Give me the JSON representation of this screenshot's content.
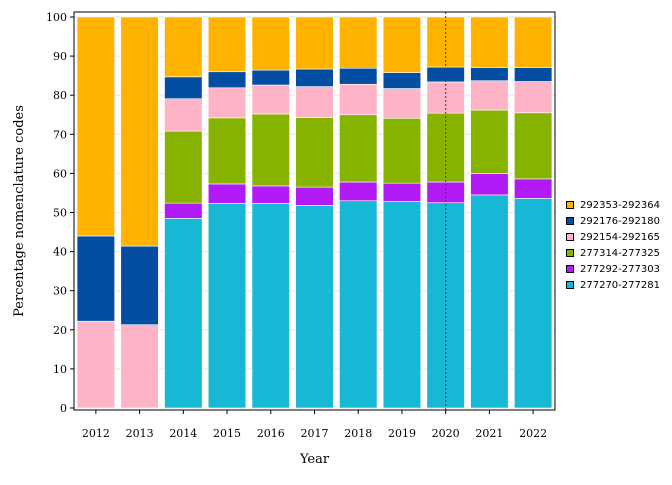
{
  "chart_data": {
    "type": "bar",
    "stacked": true,
    "title": "",
    "xlabel": "Year",
    "ylabel": "Percentage nomenclature codes",
    "ylim": [
      0,
      100
    ],
    "yticks": [
      0,
      10,
      20,
      30,
      40,
      50,
      60,
      70,
      80,
      90,
      100
    ],
    "grid": true,
    "legend_position": "right",
    "reference_line": {
      "x": "2020",
      "style": "dotted"
    },
    "categories": [
      "2012",
      "2013",
      "2014",
      "2015",
      "2016",
      "2017",
      "2018",
      "2019",
      "2020",
      "2021",
      "2022"
    ],
    "series": [
      {
        "name": "277270-277281",
        "color": "#17b8d6",
        "values": [
          0,
          0,
          48.5,
          52.3,
          52.3,
          51.8,
          53.0,
          52.8,
          52.5,
          54.5,
          53.6
        ]
      },
      {
        "name": "277292-277303",
        "color": "#b21bf5",
        "values": [
          0,
          0,
          3.9,
          5.0,
          4.5,
          4.7,
          4.8,
          4.7,
          5.3,
          5.5,
          5.0
        ]
      },
      {
        "name": "277314-277325",
        "color": "#86b300",
        "values": [
          0,
          0,
          18.4,
          16.9,
          18.4,
          17.8,
          17.2,
          16.6,
          17.6,
          16.2,
          16.9
        ]
      },
      {
        "name": "292154-292165",
        "color": "#ffb3c6",
        "values": [
          22.2,
          21.3,
          8.3,
          7.7,
          7.4,
          7.9,
          7.8,
          7.6,
          8.0,
          7.5,
          8.0
        ]
      },
      {
        "name": "292176-292180",
        "color": "#034ea2",
        "values": [
          21.8,
          20.1,
          5.6,
          4.1,
          3.8,
          4.5,
          4.1,
          4.1,
          3.8,
          3.4,
          3.6
        ]
      },
      {
        "name": "292353-292364",
        "color": "#ffb300",
        "values": [
          56.0,
          58.6,
          15.3,
          14.0,
          13.6,
          13.3,
          13.1,
          14.2,
          12.8,
          12.9,
          12.9
        ]
      }
    ],
    "legend_order": [
      "292353-292364",
      "292176-292180",
      "292154-292165",
      "277314-277325",
      "277292-277303",
      "277270-277281"
    ]
  }
}
